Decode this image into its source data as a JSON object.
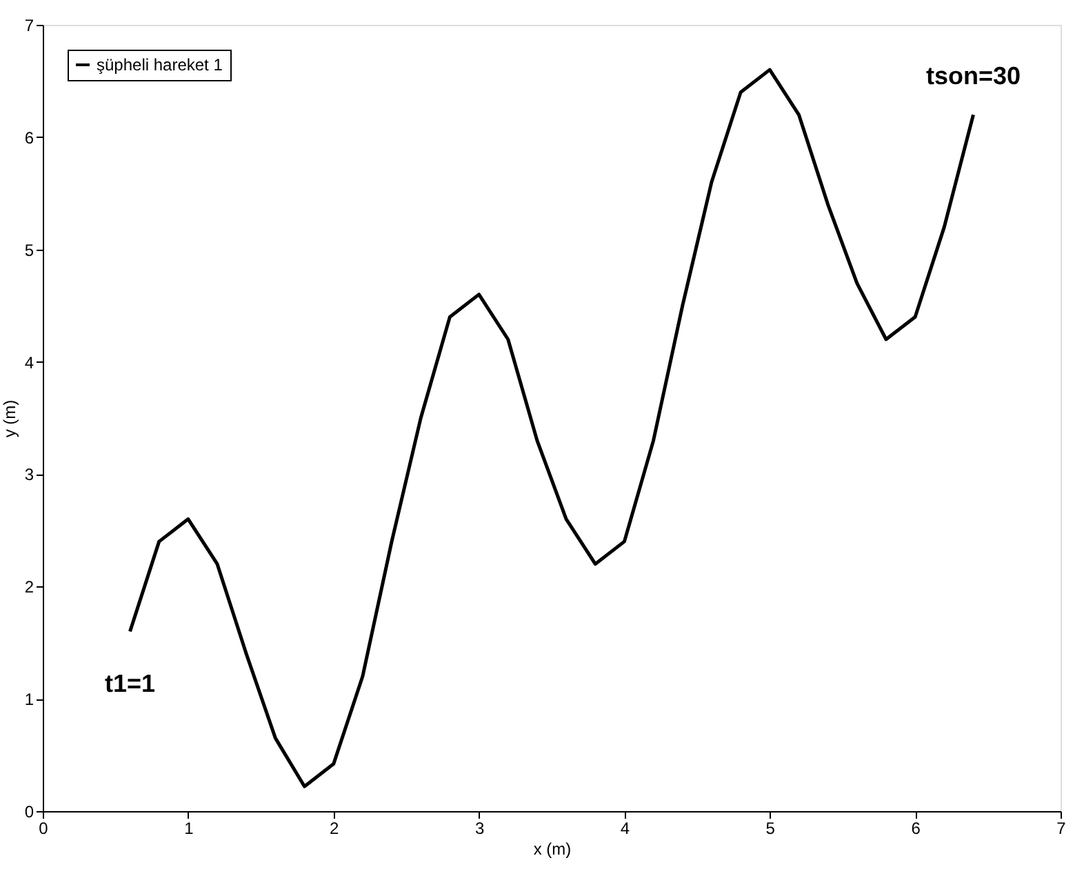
{
  "chart_data": {
    "type": "line",
    "xlabel": "x (m)",
    "ylabel": "y (m)",
    "x": [
      0.6,
      0.8,
      1.0,
      1.2,
      1.4,
      1.6,
      1.8,
      2.0,
      2.2,
      2.4,
      2.6,
      2.8,
      3.0,
      3.2,
      3.4,
      3.6,
      3.8,
      4.0,
      4.2,
      4.4,
      4.6,
      4.8,
      5.0,
      5.2,
      5.4,
      5.6,
      5.8,
      6.0,
      6.2,
      6.4
    ],
    "series": [
      {
        "name": "şüpheli hareket 1",
        "color": "#000000",
        "values": [
          1.6,
          2.4,
          2.6,
          2.2,
          1.4,
          0.65,
          0.22,
          0.42,
          1.2,
          2.4,
          3.5,
          4.4,
          4.6,
          4.2,
          3.3,
          2.6,
          2.2,
          2.4,
          3.3,
          4.5,
          5.6,
          6.4,
          6.6,
          6.2,
          5.4,
          4.7,
          4.2,
          4.4,
          5.2,
          6.2
        ]
      }
    ],
    "xlim": [
      0,
      7
    ],
    "ylim": [
      0,
      7
    ],
    "xticks": [
      0,
      1,
      2,
      3,
      4,
      5,
      6,
      7
    ],
    "yticks": [
      0,
      1,
      2,
      3,
      4,
      5,
      6,
      7
    ],
    "grid": false,
    "legend": "top left",
    "marker": "none",
    "line_style": "solid",
    "annotations": [
      {
        "text": "t1=1",
        "x": 0.6,
        "y": 1.6
      },
      {
        "text": "tson=30",
        "x": 6.4,
        "y": 6.2
      }
    ]
  }
}
